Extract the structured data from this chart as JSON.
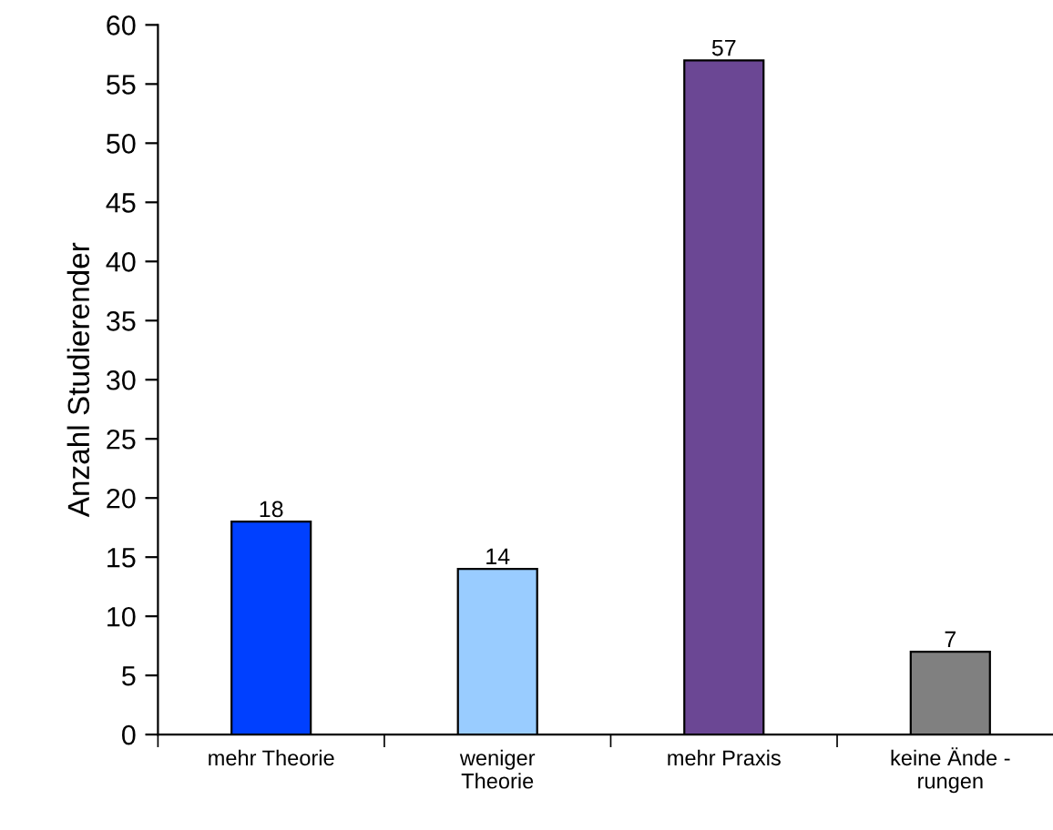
{
  "chart_data": {
    "type": "bar",
    "ylabel": "Anzahl Studierender",
    "categories": [
      "mehr Theorie",
      "weniger\nTheorie",
      "mehr Praxis",
      "keine Ände -\nrungen"
    ],
    "values": [
      18,
      14,
      57,
      7
    ],
    "colors": [
      "#0040ff",
      "#99ccff",
      "#6b4794",
      "#808080"
    ],
    "ylim": [
      0,
      60
    ],
    "yticks": [
      0,
      5,
      10,
      15,
      20,
      25,
      30,
      35,
      40,
      45,
      50,
      55,
      60
    ],
    "data_labels": true,
    "grid": false,
    "legend": false
  }
}
